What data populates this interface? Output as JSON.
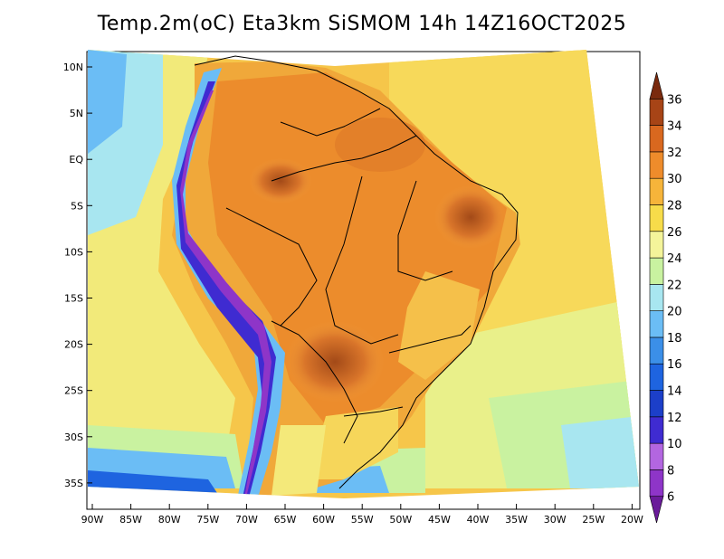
{
  "title": "Temp.2m(oC) Eta3km SiSMOM 14h 14Z16OCT2025",
  "axes": {
    "latitude_labels": [
      "10N",
      "5N",
      "EQ",
      "5S",
      "10S",
      "15S",
      "20S",
      "25S",
      "30S",
      "35S"
    ],
    "latitude_values": [
      10,
      5,
      0,
      -5,
      -10,
      -15,
      -20,
      -25,
      -30,
      -35
    ],
    "longitude_labels": [
      "90W",
      "85W",
      "80W",
      "75W",
      "70W",
      "65W",
      "60W",
      "55W",
      "50W",
      "45W",
      "40W",
      "35W",
      "30W",
      "25W",
      "20W"
    ],
    "longitude_values": [
      -90,
      -85,
      -80,
      -75,
      -70,
      -65,
      -60,
      -55,
      -50,
      -45,
      -40,
      -35,
      -30,
      -25,
      -20
    ],
    "lon_range": [
      -90,
      -20
    ],
    "lat_range": [
      -38,
      11
    ]
  },
  "colorbar": {
    "labels": [
      "6",
      "8",
      "10",
      "12",
      "14",
      "16",
      "18",
      "20",
      "22",
      "24",
      "26",
      "28",
      "30",
      "32",
      "34",
      "36"
    ],
    "colors": [
      "#6a1b9a",
      "#8e35c8",
      "#b366e0",
      "#3f2bd1",
      "#1c3fc9",
      "#1e64e0",
      "#3b8fe8",
      "#6bbdf5",
      "#a8e6f0",
      "#c9f2a0",
      "#f4f49a",
      "#f7dc4a",
      "#f6b43a",
      "#ee8c2b",
      "#d9681f",
      "#a74416",
      "#7a2a0e"
    ]
  }
}
